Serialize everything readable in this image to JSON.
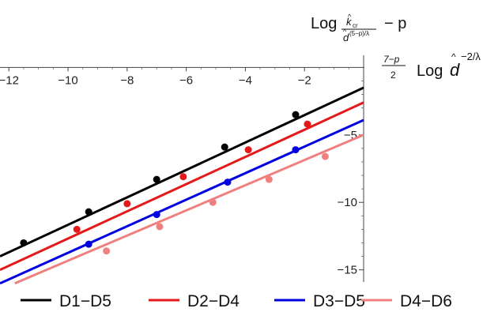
{
  "chart_data": {
    "type": "line",
    "title": "",
    "ylabel": {
      "prefix": "Log",
      "num": "k",
      "num_sub": "cr",
      "den": "d",
      "den_exp": "(5−p)/λ",
      "suffix": "−  p"
    },
    "xlabel": {
      "frac_num": "7−p",
      "frac_den": "2",
      "log": "Log",
      "base": "d",
      "exp": "−2/λ"
    },
    "xlim": [
      -12.3,
      0.0
    ],
    "ylim": [
      -15.9,
      0.9
    ],
    "x_ticks": [
      -12,
      -10,
      -8,
      -6,
      -4,
      -2
    ],
    "x_tick_labels": [
      "−12",
      "−10",
      "−8",
      "−6",
      "−4",
      "−2"
    ],
    "y_ticks": [
      -5,
      -10,
      -15
    ],
    "y_tick_labels": [
      "−5",
      "−10",
      "−15"
    ],
    "grid": false,
    "legend_position": "bottom",
    "series": [
      {
        "name": "D1−D5",
        "color": "#000000",
        "line_start": [
          -12.3,
          -14.0
        ],
        "line_end": [
          0.0,
          -1.5
        ],
        "points": [
          [
            -11.5,
            -13.0
          ],
          [
            -9.3,
            -10.7
          ],
          [
            -7.0,
            -8.3
          ],
          [
            -4.7,
            -5.9
          ],
          [
            -2.3,
            -3.5
          ]
        ]
      },
      {
        "name": "D2−D4",
        "color": "#e41a1a",
        "line_start": [
          -12.3,
          -15.0
        ],
        "line_end": [
          0.0,
          -2.6
        ],
        "points": [
          [
            -9.7,
            -12.0
          ],
          [
            -8.0,
            -10.1
          ],
          [
            -6.1,
            -8.1
          ],
          [
            -3.9,
            -6.1
          ],
          [
            -1.9,
            -4.2
          ]
        ]
      },
      {
        "name": "D3−D5",
        "color": "#0000e0",
        "line_start": [
          -12.3,
          -16.0
        ],
        "line_end": [
          0.0,
          -3.9
        ],
        "points": [
          [
            -9.3,
            -13.1
          ],
          [
            -7.0,
            -10.9
          ],
          [
            -4.6,
            -8.5
          ],
          [
            -2.3,
            -6.1
          ]
        ]
      },
      {
        "name": "D4−D6",
        "color": "#f08080",
        "line_start": [
          -11.8,
          -16.0
        ],
        "line_end": [
          0.0,
          -5.0
        ],
        "points": [
          [
            -8.7,
            -13.6
          ],
          [
            -6.9,
            -11.8
          ],
          [
            -5.1,
            -10.0
          ],
          [
            -3.2,
            -8.3
          ],
          [
            -1.3,
            -6.6
          ]
        ]
      }
    ]
  }
}
